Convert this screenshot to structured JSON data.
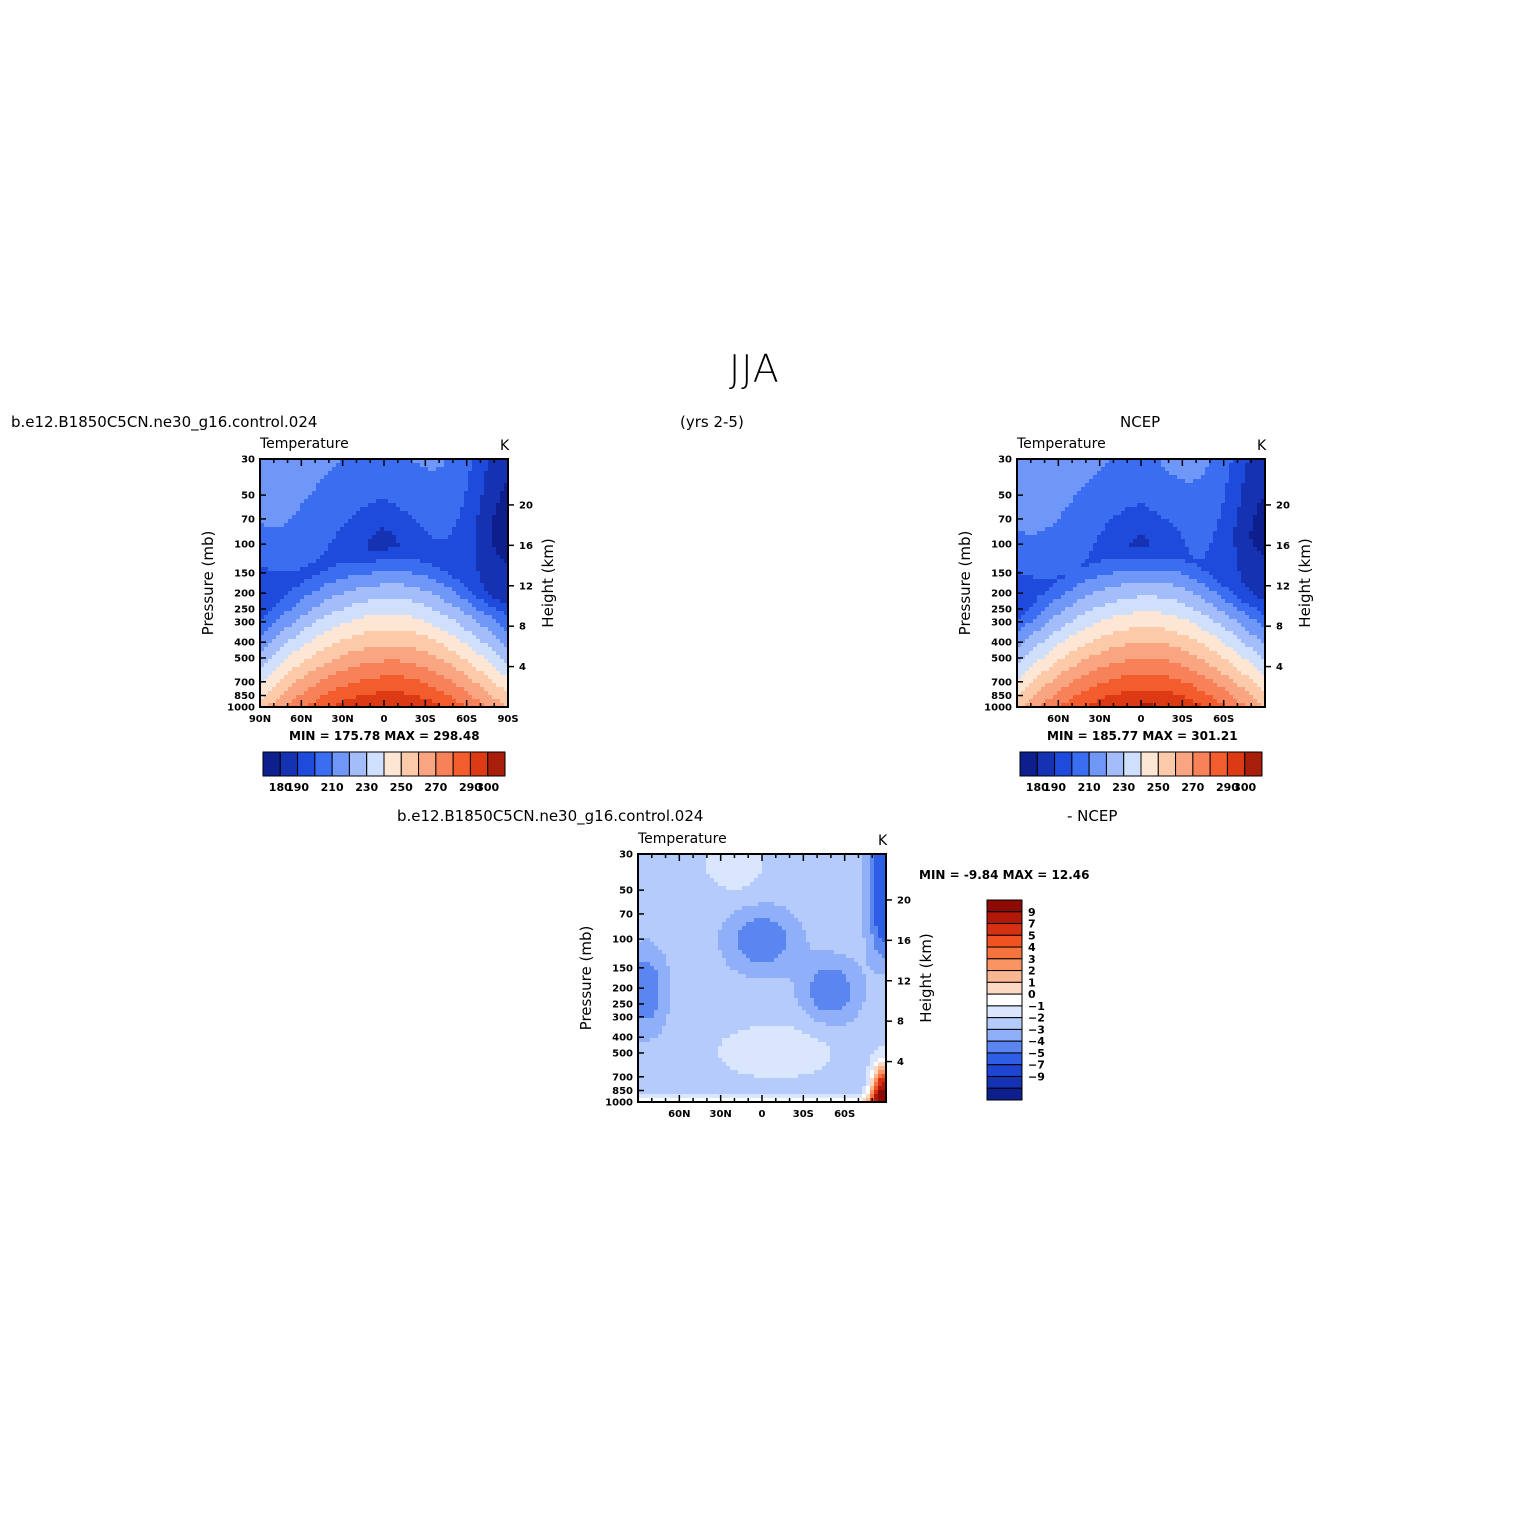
{
  "page": {
    "title": "JJA",
    "period": "(yrs 2-5)"
  },
  "panels": [
    {
      "id": "model",
      "case_title": "b.e12.B1850C5CN.ne30_g16.control.024",
      "variable": "Temperature",
      "units": "K",
      "ylabel_left": "Pressure (mb)",
      "ylabel_right": "Height (km)",
      "stats": "MIN =  175.78   MAX =  298.48"
    },
    {
      "id": "obs",
      "case_title": "NCEP",
      "variable": "Temperature",
      "units": "K",
      "ylabel_left": "Pressure (mb)",
      "ylabel_right": "Height (km)",
      "stats": "MIN =  185.77   MAX =  301.21"
    },
    {
      "id": "diff",
      "case_title_left": "b.e12.B1850C5CN.ne30_g16.control.024",
      "case_title_right": "- NCEP",
      "variable": "Temperature",
      "units": "K",
      "ylabel_left": "Pressure (mb)",
      "ylabel_right": "Height (km)",
      "stats": "MIN =   -9.84   MAX =   12.46"
    }
  ],
  "chart_data": [
    {
      "type": "heatmap",
      "name": "model",
      "x": [
        "90N",
        "60N",
        "30N",
        "0",
        "30S",
        "60S",
        "90S"
      ],
      "y_pressure_mb": [
        30,
        50,
        70,
        100,
        150,
        200,
        250,
        300,
        400,
        500,
        700,
        850,
        1000
      ],
      "y_height_km": [
        20,
        16,
        12,
        8,
        4
      ],
      "ylim_mb": [
        1000,
        30
      ],
      "min": 175.78,
      "max": 298.48,
      "colorbar_levels": [
        180,
        190,
        210,
        230,
        250,
        270,
        290,
        300
      ],
      "colorbar_labels": [
        "180",
        "190",
        "210",
        "230",
        "250",
        "270",
        "290",
        "300"
      ]
    },
    {
      "type": "heatmap",
      "name": "obs",
      "x": [
        "60N",
        "30N",
        "0",
        "30S",
        "60S"
      ],
      "y_pressure_mb": [
        30,
        50,
        70,
        100,
        150,
        200,
        250,
        300,
        400,
        500,
        700,
        850,
        1000
      ],
      "y_height_km": [
        20,
        16,
        12,
        8,
        4
      ],
      "ylim_mb": [
        1000,
        30
      ],
      "min": 185.77,
      "max": 301.21,
      "colorbar_levels": [
        180,
        190,
        210,
        230,
        250,
        270,
        290,
        300
      ],
      "colorbar_labels": [
        "180",
        "190",
        "210",
        "230",
        "250",
        "270",
        "290",
        "300"
      ]
    },
    {
      "type": "heatmap",
      "name": "diff",
      "x": [
        "60N",
        "30N",
        "0",
        "30S",
        "60S"
      ],
      "y_pressure_mb": [
        30,
        50,
        70,
        100,
        150,
        200,
        250,
        300,
        400,
        500,
        700,
        850,
        1000
      ],
      "y_height_km": [
        20,
        16,
        12,
        8,
        4
      ],
      "ylim_mb": [
        1000,
        30
      ],
      "min": -9.84,
      "max": 12.46,
      "colorbar_levels": [
        9,
        7,
        5,
        4,
        3,
        2,
        1,
        0,
        -1,
        -2,
        -3,
        -4,
        -5,
        -7,
        -9
      ],
      "colorbar_labels": [
        "9",
        "7",
        "5",
        "4",
        "3",
        "2",
        "1",
        "0",
        "−1",
        "−2",
        "−3",
        "−4",
        "−5",
        "−7",
        "−9"
      ]
    }
  ],
  "palette": {
    "abs": [
      "#0d1f8c",
      "#1532b2",
      "#1f4bdc",
      "#3a6df0",
      "#6f97f7",
      "#a3bcfa",
      "#cfdffc",
      "#fde6d4",
      "#fccaa9",
      "#faa582",
      "#f78159",
      "#f35d2e",
      "#dc3a14",
      "#a71e0a"
    ],
    "diff": [
      "#8e0b05",
      "#b0180a",
      "#d43012",
      "#f05222",
      "#f7733d",
      "#fa9563",
      "#fbb692",
      "#fdd8c3",
      "#ffffff",
      "#d9e6fd",
      "#b4cbfb",
      "#8fb0f8",
      "#5b86f2",
      "#2f5ee6",
      "#1d45d1",
      "#1532b2",
      "#0d1f8c"
    ]
  }
}
